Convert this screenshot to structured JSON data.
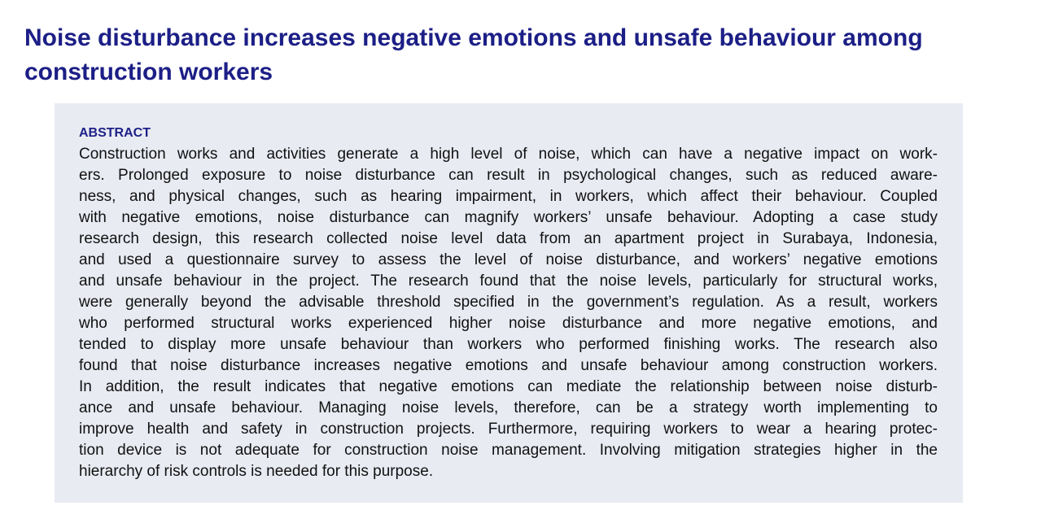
{
  "title": "Noise disturbance increases negative emotions and unsafe behaviour among construction workers",
  "abstract": {
    "heading": "ABSTRACT",
    "lines": [
      "Construction works and activities generate a high level of noise, which can have a negative impact on work-",
      "ers. Prolonged exposure to noise disturbance can result in psychological changes, such as reduced aware-",
      "ness, and physical changes, such as hearing impairment, in workers, which affect their behaviour. Coupled",
      "with negative emotions, noise disturbance can magnify workers’ unsafe behaviour. Adopting a case study",
      "research design, this research collected noise level data from an apartment project in Surabaya, Indonesia,",
      "and used a questionnaire survey to assess the level of noise disturbance, and workers’ negative emotions",
      "and unsafe behaviour in the project. The research found that the noise levels, particularly for structural works,",
      "were generally beyond the advisable threshold specified in the government’s regulation. As a result, workers",
      "who performed structural works experienced higher noise disturbance and more negative emotions, and",
      "tended to display more unsafe behaviour than workers who performed finishing works. The research also",
      "found that noise disturbance increases negative emotions and unsafe behaviour among construction workers.",
      "In addition, the result indicates that negative emotions can mediate the relationship between noise disturb-",
      "ance and unsafe behaviour. Managing noise levels, therefore, can be a strategy worth implementing to",
      "improve health and safety in construction projects. Furthermore, requiring workers to wear a hearing protec-",
      "tion device is not adequate for construction noise management. Involving mitigation strategies higher in the",
      "hierarchy of risk controls is needed for this purpose."
    ]
  }
}
